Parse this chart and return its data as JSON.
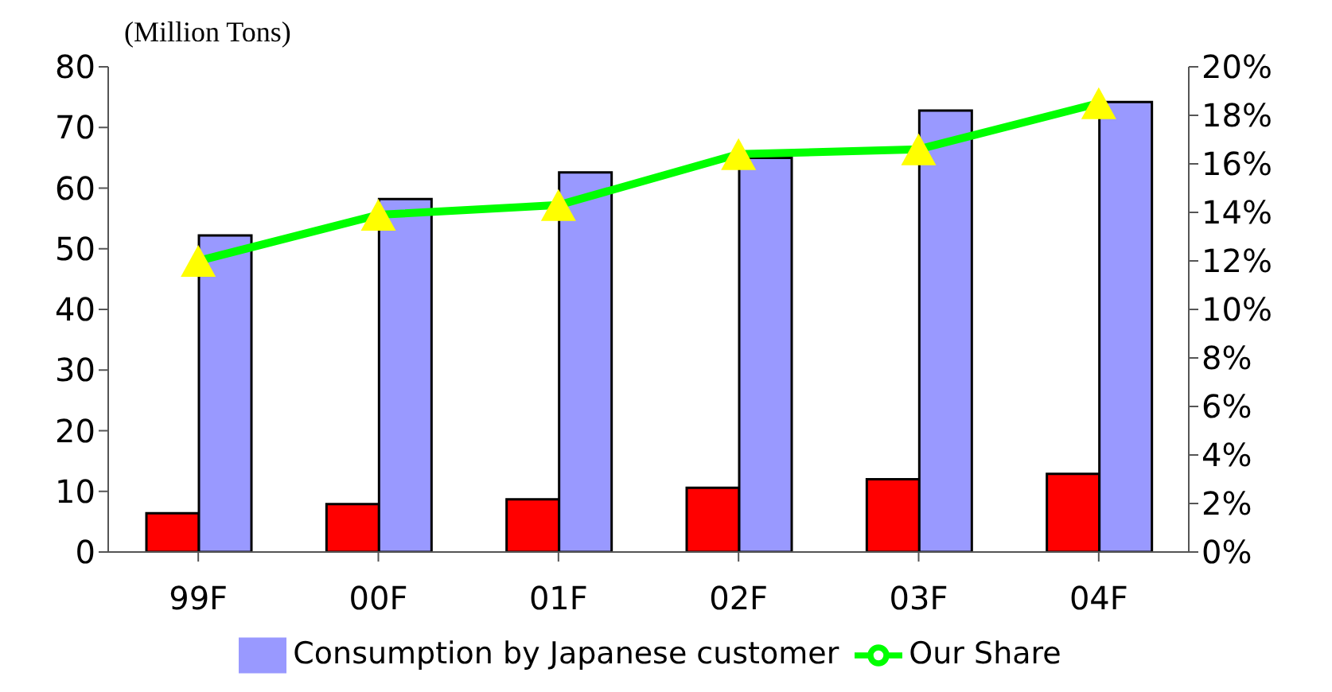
{
  "chart_data": {
    "type": "bar",
    "ylabel": "(Million Tons)",
    "categories": [
      "99F",
      "00F",
      "01F",
      "02F",
      "03F",
      "04F"
    ],
    "series": [
      {
        "color": "#ff0000",
        "values": [
          6.4,
          7.9,
          8.7,
          10.6,
          12.0,
          12.9
        ]
      },
      {
        "name": "Consumption by Japanese customer",
        "color": "#9999ff",
        "values": [
          52.2,
          58.2,
          62.6,
          65.0,
          72.8,
          74.2
        ]
      },
      {
        "name": "Our Share",
        "type": "line",
        "axis": "y2",
        "color": "#00ff00",
        "marker": "triangle",
        "values": [
          12.0,
          13.9,
          14.3,
          16.4,
          16.6,
          18.5
        ]
      }
    ],
    "ylim": [
      0,
      80
    ],
    "yticks": [
      0,
      10,
      20,
      30,
      40,
      50,
      60,
      70,
      80
    ],
    "y2lim": [
      0,
      20
    ],
    "y2ticks": [
      {
        "value": 0,
        "label": "0%"
      },
      {
        "value": 2,
        "label": "2%"
      },
      {
        "value": 4,
        "label": "4%"
      },
      {
        "value": 6,
        "label": "6%"
      },
      {
        "value": 8,
        "label": "8%"
      },
      {
        "value": 10,
        "label": "10%"
      },
      {
        "value": 12,
        "label": "12%"
      },
      {
        "value": 14,
        "label": "14%"
      },
      {
        "value": 16,
        "label": "16%"
      },
      {
        "value": 18,
        "label": "18%"
      },
      {
        "value": 20,
        "label": "20%"
      }
    ],
    "legend": "bottom",
    "grid": false
  }
}
